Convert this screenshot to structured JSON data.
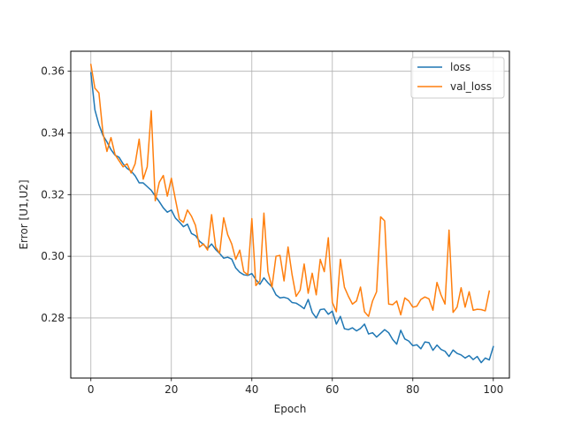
{
  "chart_data": {
    "type": "line",
    "title": "",
    "xlabel": "Epoch",
    "ylabel": "Error  [U1,U2]",
    "xlim": [
      -5,
      104
    ],
    "ylim": [
      0.2605,
      0.3665
    ],
    "xticks": [
      0,
      20,
      40,
      60,
      80,
      100
    ],
    "yticks": [
      0.28,
      0.3,
      0.32,
      0.34,
      0.36
    ],
    "ytick_labels": [
      "0.28",
      "0.30",
      "0.32",
      "0.34",
      "0.36"
    ],
    "grid": true,
    "legend_position": "top-right",
    "colors": {
      "loss": "#1f77b4",
      "val_loss": "#ff7f0e"
    },
    "series": [
      {
        "name": "loss",
        "values": [
          0.3595,
          0.3475,
          0.3427,
          0.3392,
          0.3371,
          0.3346,
          0.3328,
          0.3321,
          0.33,
          0.3285,
          0.3276,
          0.3261,
          0.3238,
          0.3238,
          0.3226,
          0.3214,
          0.3195,
          0.3177,
          0.3157,
          0.3143,
          0.315,
          0.3124,
          0.3111,
          0.3096,
          0.3104,
          0.3074,
          0.3067,
          0.3049,
          0.3038,
          0.3025,
          0.304,
          0.3022,
          0.3009,
          0.2994,
          0.2997,
          0.2991,
          0.2962,
          0.2948,
          0.294,
          0.2938,
          0.2944,
          0.2924,
          0.2909,
          0.293,
          0.2914,
          0.2901,
          0.2875,
          0.2865,
          0.2867,
          0.2863,
          0.285,
          0.2848,
          0.284,
          0.283,
          0.286,
          0.2818,
          0.28,
          0.2827,
          0.2829,
          0.2812,
          0.2822,
          0.278,
          0.2805,
          0.2765,
          0.2762,
          0.2768,
          0.2758,
          0.2766,
          0.278,
          0.2748,
          0.2752,
          0.2738,
          0.275,
          0.2762,
          0.2752,
          0.273,
          0.2715,
          0.276,
          0.2732,
          0.2725,
          0.271,
          0.2713,
          0.27,
          0.2722,
          0.272,
          0.2695,
          0.2712,
          0.2698,
          0.2692,
          0.2675,
          0.2696,
          0.2685,
          0.268,
          0.267,
          0.2678,
          0.2665,
          0.2675,
          0.2655,
          0.267,
          0.2664,
          0.2707
        ]
      },
      {
        "name": "val_loss",
        "values": [
          0.3622,
          0.3545,
          0.353,
          0.34,
          0.334,
          0.3385,
          0.333,
          0.331,
          0.329,
          0.33,
          0.327,
          0.33,
          0.338,
          0.325,
          0.329,
          0.3472,
          0.318,
          0.324,
          0.3262,
          0.3195,
          0.3253,
          0.3185,
          0.312,
          0.311,
          0.315,
          0.313,
          0.31,
          0.303,
          0.304,
          0.302,
          0.3135,
          0.303,
          0.301,
          0.3125,
          0.307,
          0.304,
          0.299,
          0.302,
          0.295,
          0.294,
          0.3122,
          0.2905,
          0.292,
          0.314,
          0.295,
          0.29,
          0.3,
          0.3003,
          0.292,
          0.303,
          0.294,
          0.287,
          0.289,
          0.2975,
          0.288,
          0.2945,
          0.2875,
          0.299,
          0.295,
          0.306,
          0.285,
          0.282,
          0.299,
          0.29,
          0.287,
          0.2845,
          0.2855,
          0.29,
          0.282,
          0.2805,
          0.2855,
          0.2885,
          0.3128,
          0.3115,
          0.2845,
          0.2843,
          0.2855,
          0.281,
          0.2865,
          0.2855,
          0.2835,
          0.2838,
          0.286,
          0.2868,
          0.2862,
          0.2825,
          0.2915,
          0.2875,
          0.2845,
          0.3085,
          0.2818,
          0.2835,
          0.2898,
          0.2835,
          0.2885,
          0.2825,
          0.2828,
          0.2827,
          0.2823,
          0.2887
        ]
      }
    ]
  }
}
